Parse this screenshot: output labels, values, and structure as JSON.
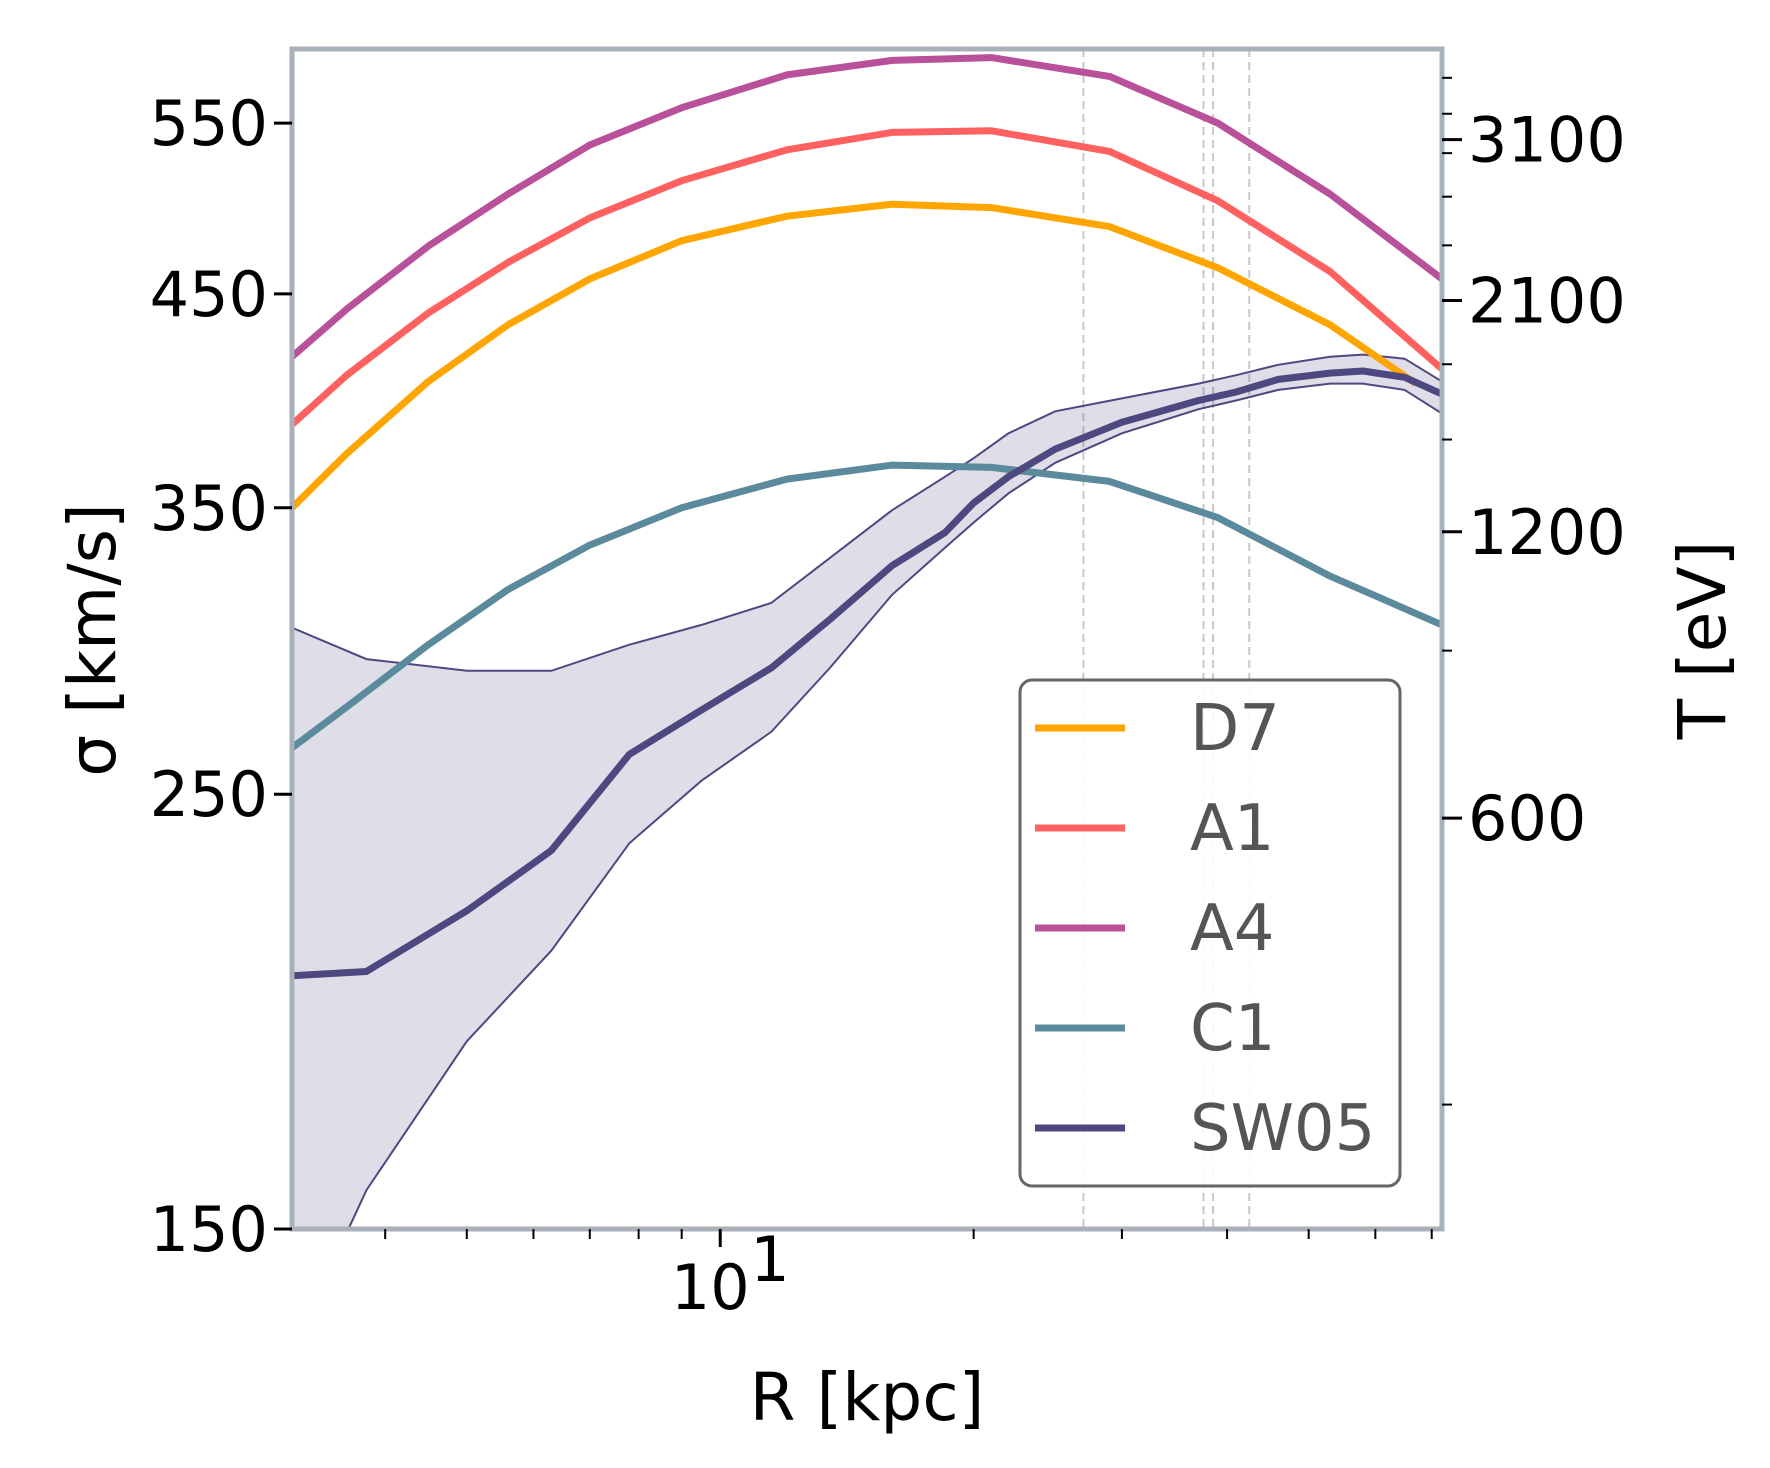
{
  "chart_data": {
    "type": "line",
    "xlabel": "R [kpc]",
    "ylabel": "σ [km/s]",
    "y2label": "T [eV]",
    "xscale": "log",
    "yscale": "log",
    "xlim": [
      3.1,
      72
    ],
    "ylim": [
      150,
      600
    ],
    "y2lim": [
      222,
      3860
    ],
    "xticks": [
      {
        "value": 10,
        "label": "10",
        "exp": "1"
      }
    ],
    "yticks": [
      {
        "value": 150,
        "label": "150"
      },
      {
        "value": 250,
        "label": "250"
      },
      {
        "value": 350,
        "label": "350"
      },
      {
        "value": 450,
        "label": "450"
      },
      {
        "value": 550,
        "label": "550"
      }
    ],
    "y2ticks": [
      {
        "value": 600,
        "label": "600"
      },
      {
        "value": 1200,
        "label": "1200"
      },
      {
        "value": 2100,
        "label": "2100"
      },
      {
        "value": 3100,
        "label": "3100"
      }
    ],
    "vlines": [
      27,
      37.5,
      38.5,
      42.5
    ],
    "legend_position": "lower-right",
    "series": [
      {
        "name": "D7",
        "color": "#ffa500",
        "x": [
          3.1,
          3.6,
          4.5,
          5.6,
          7,
          9,
          12,
          16,
          21,
          29,
          39,
          53,
          67
        ],
        "y": [
          350,
          373,
          406,
          434,
          458,
          479,
          493,
          500,
          498,
          487,
          464,
          434,
          405
        ]
      },
      {
        "name": "A1",
        "color": "#ff6060",
        "x": [
          3.1,
          3.6,
          4.5,
          5.6,
          7,
          9,
          12,
          16,
          21,
          29,
          39,
          53,
          72
        ],
        "y": [
          386,
          409,
          440,
          467,
          492,
          514,
          533,
          544,
          545,
          532,
          502,
          462,
          412
        ]
      },
      {
        "name": "A4",
        "color": "#b8509a",
        "x": [
          3.1,
          3.6,
          4.5,
          5.6,
          7,
          9,
          12,
          16,
          21,
          29,
          39,
          53,
          72
        ],
        "y": [
          418,
          442,
          476,
          506,
          536,
          560,
          582,
          592,
          594,
          581,
          550,
          506,
          458
        ]
      },
      {
        "name": "C1",
        "color": "#5a8a9c",
        "x": [
          3.1,
          3.6,
          4.5,
          5.6,
          7,
          9,
          12,
          16,
          21,
          29,
          39,
          53,
          72
        ],
        "y": [
          264,
          277,
          298,
          318,
          335,
          350,
          362,
          368,
          367,
          361,
          346,
          323,
          305
        ]
      },
      {
        "name": "SW05",
        "color": "#4e4880",
        "x": [
          3.1,
          3.8,
          5,
          6.3,
          7.8,
          9.5,
          11.5,
          13.5,
          16,
          18.5,
          20,
          22,
          25,
          30,
          37,
          41,
          46,
          53,
          58,
          65,
          72
        ],
        "y": [
          202,
          203,
          218,
          234,
          262,
          276,
          290,
          307,
          327,
          340,
          352,
          363,
          375,
          387,
          397,
          401,
          407,
          410,
          411,
          408,
          400
        ],
        "band_upper": [
          304,
          293,
          289,
          289,
          298,
          305,
          313,
          330,
          349,
          363,
          371,
          382,
          392,
          398,
          405,
          409,
          414,
          418,
          419,
          417,
          406
        ],
        "band_lower": [
          130,
          157,
          187,
          208,
          236,
          254,
          269,
          290,
          316,
          334,
          344,
          356,
          369,
          382,
          393,
          397,
          402,
          405,
          405,
          402,
          391
        ]
      }
    ]
  }
}
